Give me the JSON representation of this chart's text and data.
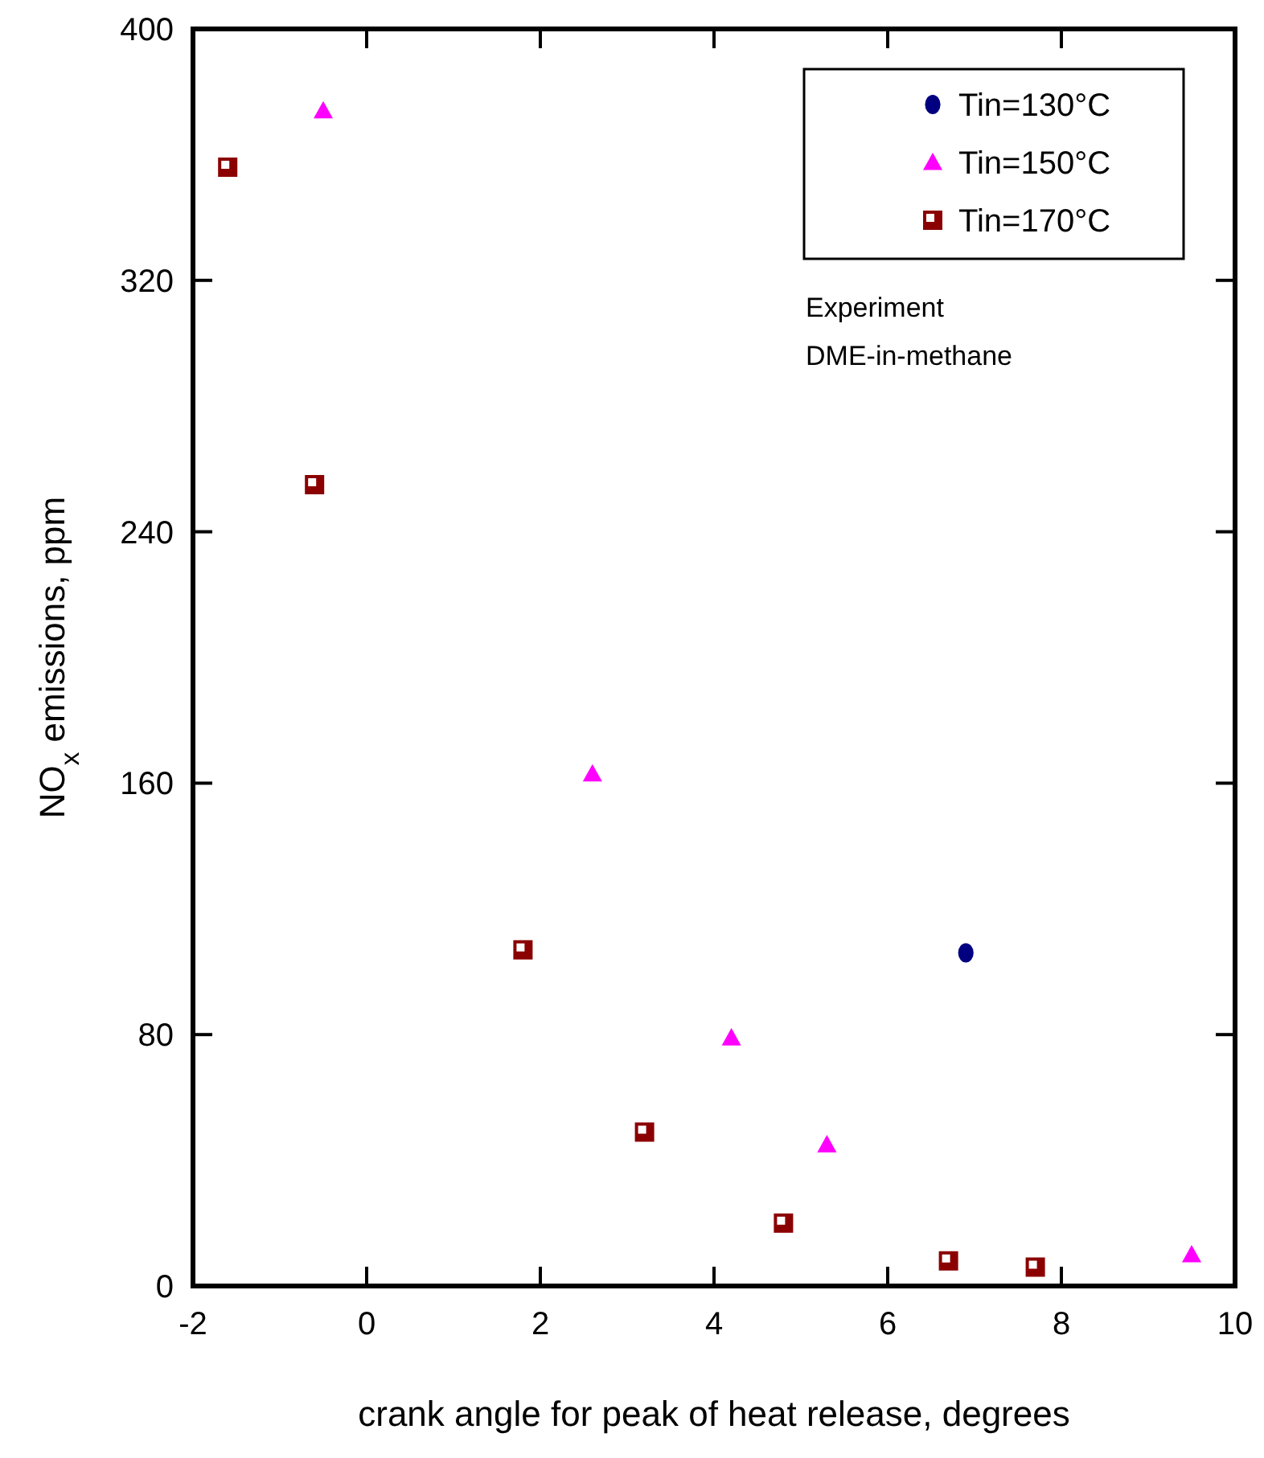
{
  "chart_data": {
    "type": "scatter",
    "xlabel": "crank angle for peak of heat release, degrees",
    "ylabel": "NO$_{x}$ emissions, ppm",
    "xlim": [
      -2,
      10
    ],
    "xticks": [
      -2,
      0,
      2,
      4,
      6,
      8,
      10
    ],
    "ylim": [
      0,
      400
    ],
    "yticks": [
      0,
      80,
      160,
      240,
      320,
      400
    ],
    "grid": false,
    "legend": "top right",
    "annotations": [
      "Experiment",
      "DME-in-methane"
    ],
    "series": [
      {
        "name": "Tin=130°C",
        "color": "#000080",
        "marker": "circle",
        "x": [
          6.9
        ],
        "values": [
          106
        ]
      },
      {
        "name": "Tin=150°C",
        "color": "#ff00ff",
        "marker": "triangle",
        "x": [
          -0.5,
          2.6,
          4.2,
          5.3,
          9.5
        ],
        "values": [
          374,
          163,
          79,
          45,
          10
        ]
      },
      {
        "name": "Tin=170°C",
        "color": "#8b0000",
        "marker": "square",
        "x": [
          -1.6,
          -0.6,
          1.8,
          3.2,
          4.8,
          6.7,
          7.7
        ],
        "values": [
          356,
          255,
          107,
          49,
          20,
          8,
          6
        ]
      }
    ]
  }
}
